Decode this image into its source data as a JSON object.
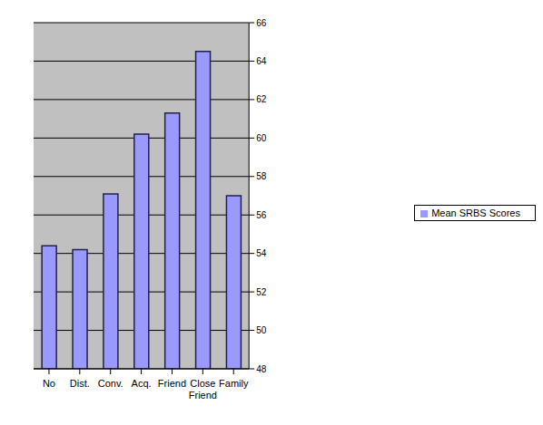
{
  "chart_data": {
    "type": "bar",
    "categories": [
      "No",
      "Dist.",
      "Conv.",
      "Acq.",
      "Friend",
      "Close Friend",
      "Family"
    ],
    "series": [
      {
        "name": "Mean SRBS Scores",
        "color": "#9999ff",
        "values": [
          54.4,
          54.2,
          57.1,
          60.2,
          61.3,
          64.5,
          57.0
        ]
      }
    ],
    "ylim": [
      48,
      66
    ],
    "yticks": [
      48,
      50,
      52,
      54,
      56,
      58,
      60,
      62,
      64,
      66
    ],
    "grid": true,
    "legend": "right"
  }
}
